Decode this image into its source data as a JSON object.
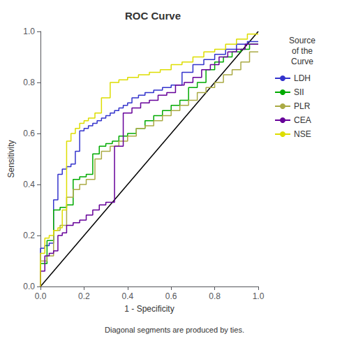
{
  "chart_data": {
    "type": "line",
    "title": "ROC Curve",
    "xlabel": "1 - Specificity",
    "ylabel": "Sensitivity",
    "annotations": [
      "Diagonal segments are produced by ties."
    ],
    "legend_title": "Source\nof the\nCurve",
    "legend": "right",
    "grid": false,
    "xlim": [
      0.0,
      1.0
    ],
    "ylim": [
      0.0,
      1.0
    ],
    "xticks": [
      {
        "value": 0.0,
        "label": "0.0"
      },
      0.2,
      0.4,
      0.6,
      0.8,
      {
        "value": 1.0,
        "label": "1.0"
      }
    ],
    "yticks": [
      {
        "value": 0.0,
        "label": "0.0"
      },
      0.2,
      0.4,
      0.6,
      0.8,
      {
        "value": 1.0,
        "label": "1.0"
      }
    ],
    "reference_line": {
      "x": [
        0,
        1
      ],
      "values": [
        0,
        1
      ],
      "color": "black"
    },
    "series": [
      {
        "name": "LDH",
        "color": "#3333cc",
        "x": [
          0.0,
          0.0,
          0.02,
          0.02,
          0.04,
          0.04,
          0.06,
          0.06,
          0.08,
          0.08,
          0.1,
          0.1,
          0.12,
          0.12,
          0.14,
          0.14,
          0.16,
          0.16,
          0.18,
          0.18,
          0.2,
          0.2,
          0.22,
          0.22,
          0.24,
          0.24,
          0.26,
          0.26,
          0.28,
          0.28,
          0.3,
          0.3,
          0.32,
          0.32,
          0.34,
          0.34,
          0.36,
          0.36,
          0.38,
          0.38,
          0.4,
          0.4,
          0.42,
          0.42,
          0.45,
          0.45,
          0.48,
          0.48,
          0.52,
          0.52,
          0.56,
          0.56,
          0.6,
          0.6,
          0.65,
          0.65,
          0.7,
          0.7,
          0.75,
          0.75,
          0.8,
          0.8,
          0.85,
          0.85,
          0.9,
          0.9,
          0.95,
          0.95,
          1.0
        ],
        "values": [
          0.0,
          0.15,
          0.15,
          0.16,
          0.16,
          0.17,
          0.17,
          0.34,
          0.34,
          0.44,
          0.44,
          0.46,
          0.46,
          0.47,
          0.47,
          0.48,
          0.48,
          0.53,
          0.53,
          0.61,
          0.61,
          0.62,
          0.62,
          0.63,
          0.63,
          0.64,
          0.64,
          0.65,
          0.65,
          0.66,
          0.66,
          0.67,
          0.67,
          0.68,
          0.68,
          0.69,
          0.69,
          0.7,
          0.7,
          0.71,
          0.71,
          0.72,
          0.72,
          0.74,
          0.74,
          0.75,
          0.75,
          0.76,
          0.76,
          0.77,
          0.77,
          0.78,
          0.78,
          0.79,
          0.79,
          0.84,
          0.84,
          0.87,
          0.87,
          0.89,
          0.89,
          0.91,
          0.91,
          0.93,
          0.93,
          0.95,
          0.95,
          0.96,
          0.96
        ]
      },
      {
        "name": "SII",
        "color": "#00aa00",
        "x": [
          0.0,
          0.0,
          0.03,
          0.03,
          0.06,
          0.06,
          0.09,
          0.09,
          0.12,
          0.12,
          0.15,
          0.15,
          0.18,
          0.18,
          0.21,
          0.21,
          0.24,
          0.24,
          0.27,
          0.27,
          0.3,
          0.3,
          0.33,
          0.33,
          0.36,
          0.36,
          0.4,
          0.4,
          0.44,
          0.44,
          0.48,
          0.48,
          0.52,
          0.52,
          0.56,
          0.56,
          0.6,
          0.6,
          0.64,
          0.64,
          0.68,
          0.68,
          0.72,
          0.72,
          0.76,
          0.76,
          0.8,
          0.8,
          0.84,
          0.84,
          0.88,
          0.88,
          0.92,
          0.92,
          0.96,
          0.96,
          1.0
        ],
        "values": [
          0.0,
          0.09,
          0.09,
          0.18,
          0.18,
          0.3,
          0.3,
          0.31,
          0.31,
          0.32,
          0.32,
          0.42,
          0.42,
          0.43,
          0.43,
          0.44,
          0.44,
          0.52,
          0.52,
          0.55,
          0.55,
          0.56,
          0.56,
          0.57,
          0.57,
          0.59,
          0.59,
          0.6,
          0.6,
          0.62,
          0.62,
          0.65,
          0.65,
          0.67,
          0.67,
          0.69,
          0.69,
          0.71,
          0.71,
          0.73,
          0.73,
          0.78,
          0.78,
          0.8,
          0.8,
          0.85,
          0.85,
          0.88,
          0.88,
          0.9,
          0.9,
          0.92,
          0.92,
          0.93,
          0.93,
          0.95,
          0.95
        ]
      },
      {
        "name": "PLR",
        "color": "#aaaa44",
        "x": [
          0.0,
          0.0,
          0.03,
          0.03,
          0.06,
          0.06,
          0.09,
          0.09,
          0.12,
          0.12,
          0.15,
          0.15,
          0.18,
          0.18,
          0.21,
          0.21,
          0.25,
          0.25,
          0.28,
          0.28,
          0.32,
          0.32,
          0.36,
          0.36,
          0.4,
          0.4,
          0.44,
          0.44,
          0.48,
          0.48,
          0.52,
          0.52,
          0.56,
          0.56,
          0.6,
          0.6,
          0.64,
          0.64,
          0.68,
          0.68,
          0.72,
          0.72,
          0.76,
          0.76,
          0.8,
          0.8,
          0.84,
          0.84,
          0.88,
          0.88,
          0.92,
          0.92,
          0.96,
          0.96,
          1.0
        ],
        "values": [
          0.0,
          0.1,
          0.1,
          0.12,
          0.12,
          0.22,
          0.22,
          0.24,
          0.24,
          0.35,
          0.35,
          0.38,
          0.38,
          0.4,
          0.4,
          0.42,
          0.42,
          0.5,
          0.5,
          0.53,
          0.53,
          0.55,
          0.55,
          0.57,
          0.57,
          0.59,
          0.59,
          0.62,
          0.62,
          0.63,
          0.63,
          0.65,
          0.65,
          0.67,
          0.67,
          0.69,
          0.69,
          0.71,
          0.71,
          0.73,
          0.73,
          0.76,
          0.76,
          0.78,
          0.78,
          0.8,
          0.8,
          0.83,
          0.83,
          0.85,
          0.85,
          0.88,
          0.88,
          0.92,
          0.92
        ]
      },
      {
        "name": "CEA",
        "color": "#660099",
        "x": [
          0.0,
          0.0,
          0.02,
          0.02,
          0.04,
          0.04,
          0.06,
          0.06,
          0.08,
          0.08,
          0.1,
          0.1,
          0.12,
          0.12,
          0.15,
          0.15,
          0.18,
          0.18,
          0.21,
          0.21,
          0.24,
          0.24,
          0.27,
          0.27,
          0.3,
          0.3,
          0.34,
          0.34,
          0.38,
          0.38,
          0.42,
          0.42,
          0.46,
          0.46,
          0.5,
          0.5,
          0.54,
          0.54,
          0.58,
          0.58,
          0.62,
          0.62,
          0.66,
          0.66,
          0.7,
          0.7,
          0.74,
          0.74,
          0.78,
          0.78,
          0.82,
          0.82,
          0.86,
          0.86,
          0.9,
          0.9,
          0.94,
          0.94,
          1.0
        ],
        "values": [
          0.0,
          0.06,
          0.06,
          0.12,
          0.12,
          0.13,
          0.13,
          0.14,
          0.14,
          0.2,
          0.2,
          0.21,
          0.21,
          0.24,
          0.24,
          0.25,
          0.25,
          0.26,
          0.26,
          0.28,
          0.28,
          0.3,
          0.3,
          0.32,
          0.32,
          0.33,
          0.33,
          0.55,
          0.55,
          0.68,
          0.68,
          0.7,
          0.7,
          0.72,
          0.72,
          0.73,
          0.73,
          0.75,
          0.75,
          0.76,
          0.76,
          0.79,
          0.79,
          0.8,
          0.8,
          0.82,
          0.82,
          0.85,
          0.85,
          0.87,
          0.87,
          0.9,
          0.9,
          0.92,
          0.92,
          0.93,
          0.93,
          0.95,
          0.95
        ]
      },
      {
        "name": "NSE",
        "color": "#dddd00",
        "x": [
          0.0,
          0.0,
          0.02,
          0.02,
          0.04,
          0.04,
          0.06,
          0.06,
          0.08,
          0.08,
          0.1,
          0.1,
          0.12,
          0.12,
          0.14,
          0.14,
          0.16,
          0.16,
          0.18,
          0.18,
          0.2,
          0.2,
          0.22,
          0.22,
          0.25,
          0.25,
          0.28,
          0.28,
          0.32,
          0.32,
          0.36,
          0.36,
          0.4,
          0.4,
          0.45,
          0.45,
          0.5,
          0.5,
          0.55,
          0.55,
          0.6,
          0.6,
          0.65,
          0.65,
          0.7,
          0.7,
          0.75,
          0.75,
          0.8,
          0.8,
          0.85,
          0.85,
          0.9,
          0.9,
          0.95,
          0.95,
          1.0
        ],
        "values": [
          0.0,
          0.13,
          0.13,
          0.19,
          0.19,
          0.2,
          0.2,
          0.22,
          0.22,
          0.23,
          0.23,
          0.3,
          0.3,
          0.57,
          0.57,
          0.6,
          0.6,
          0.62,
          0.62,
          0.64,
          0.64,
          0.65,
          0.65,
          0.66,
          0.66,
          0.68,
          0.68,
          0.74,
          0.74,
          0.8,
          0.8,
          0.81,
          0.81,
          0.82,
          0.82,
          0.83,
          0.83,
          0.84,
          0.84,
          0.85,
          0.85,
          0.87,
          0.87,
          0.88,
          0.88,
          0.9,
          0.9,
          0.92,
          0.92,
          0.93,
          0.93,
          0.95,
          0.95,
          0.97,
          0.97,
          0.99,
          0.99
        ]
      }
    ]
  }
}
